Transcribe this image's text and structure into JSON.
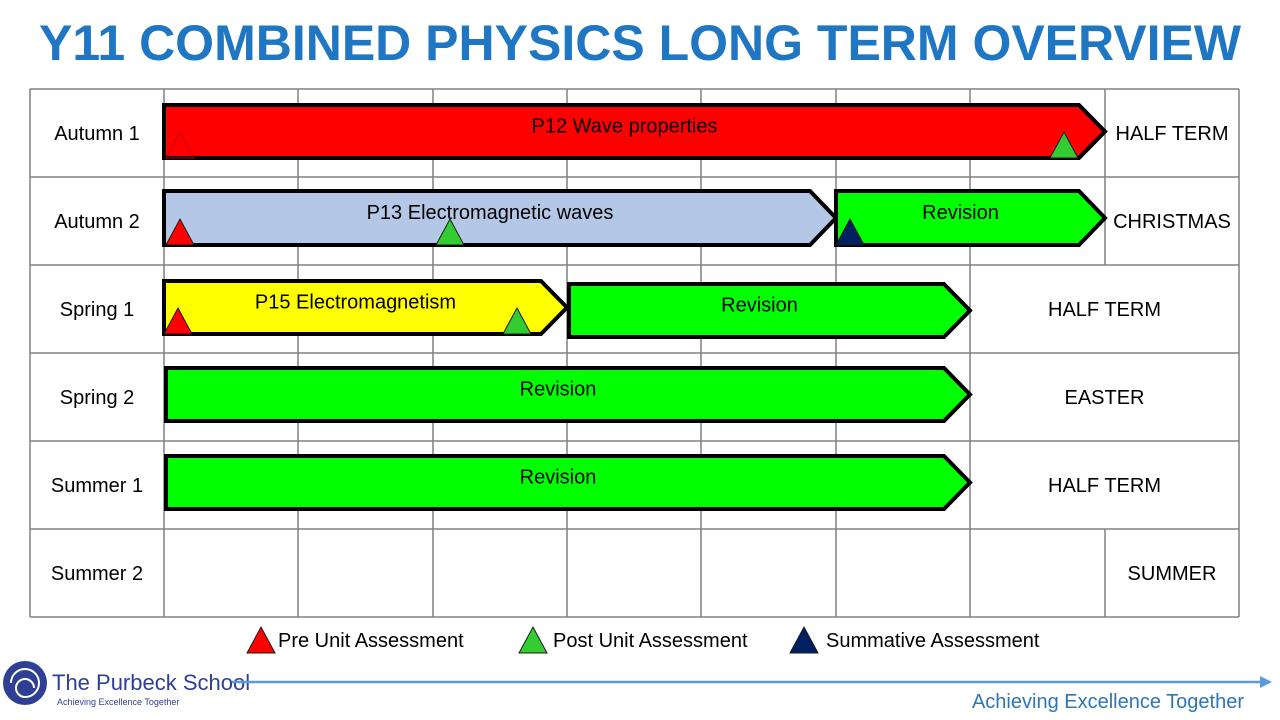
{
  "title": "Y11 COMBINED PHYSICS LONG TERM OVERVIEW",
  "rows": [
    {
      "term": "Autumn 1",
      "holiday": "HALF TERM"
    },
    {
      "term": "Autumn 2",
      "holiday": "CHRISTMAS"
    },
    {
      "term": "Spring 1",
      "holiday": "HALF TERM"
    },
    {
      "term": "Spring 2",
      "holiday": "EASTER"
    },
    {
      "term": "Summer 1",
      "holiday": "HALF TERM"
    },
    {
      "term": "Summer 2",
      "holiday": "SUMMER"
    }
  ],
  "units": [
    {
      "label": "P12 Wave properties",
      "color": "#ff0000"
    },
    {
      "label": "P13 Electromagnetic waves",
      "color": "#b4c7e7"
    },
    {
      "label": "Revision",
      "color": "#00ff00"
    },
    {
      "label": "P15 Electromagnetism",
      "color": "#ffff00"
    },
    {
      "label": "Revision",
      "color": "#00ff00"
    },
    {
      "label": "Revision",
      "color": "#00ff00"
    },
    {
      "label": "Revision",
      "color": "#00ff00"
    }
  ],
  "legend": [
    {
      "label": "Pre Unit Assessment",
      "color": "#ff0000"
    },
    {
      "label": "Post Unit Assessment",
      "color": "#33cc33"
    },
    {
      "label": "Summative Assessment",
      "color": "#002060"
    }
  ],
  "footer": {
    "school": "The Purbeck School",
    "school_motto": "Achieving Excellence Together",
    "tagline": "Achieving Excellence Together"
  }
}
